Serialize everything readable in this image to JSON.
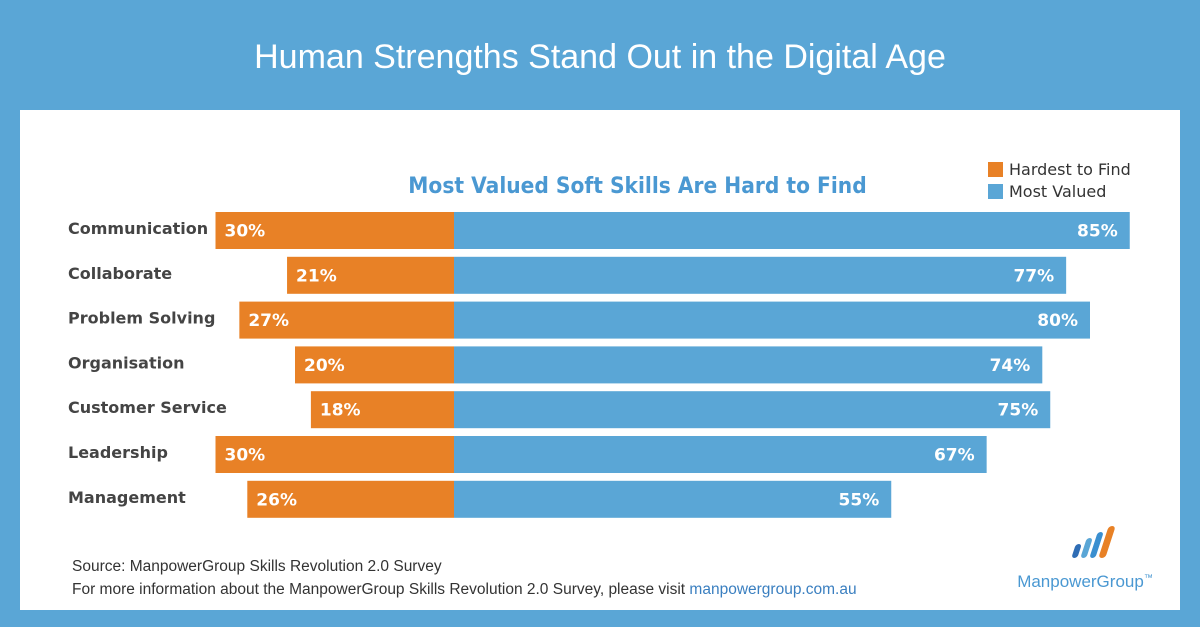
{
  "banner": {
    "title": "Human Strengths Stand Out in the Digital Age"
  },
  "chart_data": {
    "type": "bar",
    "title": "Most Valued Soft Skills Are Hard to Find",
    "categories": [
      "Communication",
      "Collaborate",
      "Problem Solving",
      "Organisation",
      "Customer Service",
      "Leadership",
      "Management"
    ],
    "series": [
      {
        "name": "Hardest to Find",
        "values": [
          30,
          21,
          27,
          20,
          18,
          30,
          26
        ],
        "color": "#e88126"
      },
      {
        "name": "Most Valued",
        "values": [
          85,
          77,
          80,
          74,
          75,
          67,
          55
        ],
        "color": "#5aa6d6"
      }
    ],
    "legend_placement": "top-right",
    "value_suffix": "%"
  },
  "footer": {
    "source_line": "Source: ManpowerGroup Skills Revolution 2.0 Survey",
    "info_line": "For more information about the ManpowerGroup Skills Revolution 2.0 Survey, please visit ",
    "link_text": "manpowergroup.com.au"
  },
  "logo": {
    "text": "ManpowerGroup",
    "trademark": "™"
  }
}
